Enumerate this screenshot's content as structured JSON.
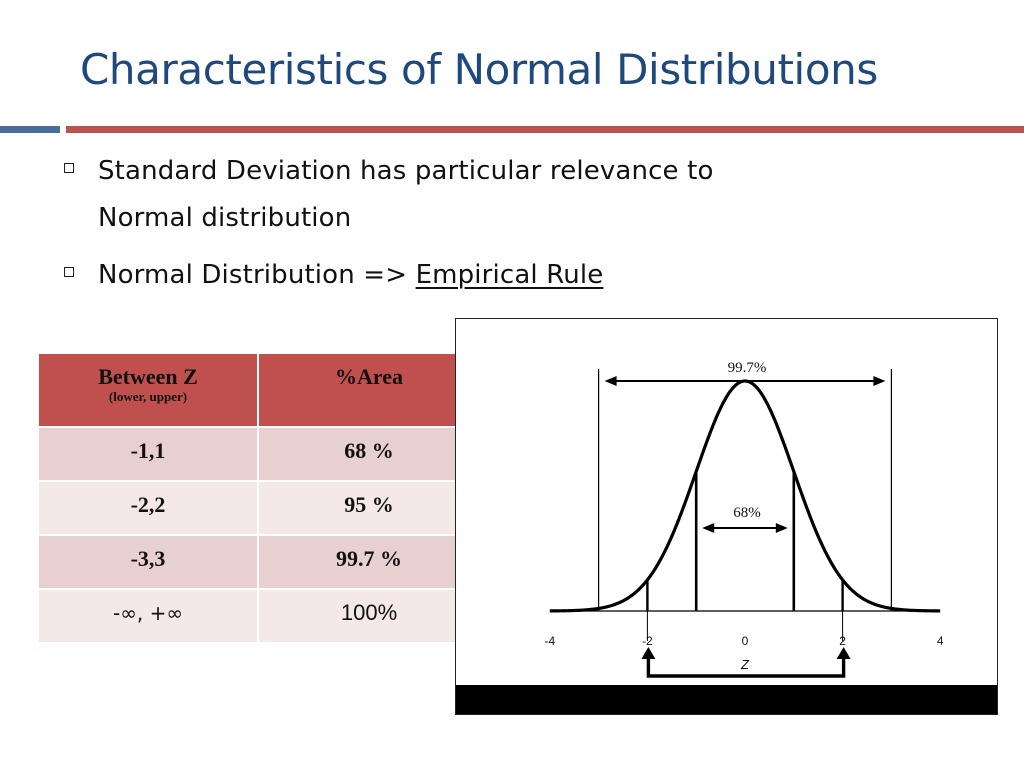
{
  "title": "Characteristics of Normal Distributions",
  "colors": {
    "title": "#1f497d",
    "accent_blue": "#4a6e9b",
    "accent_red": "#c0504d",
    "row_dark": "#e9d0d0",
    "row_light": "#f4e8e8"
  },
  "bullets": [
    {
      "icon": "square-bullet-icon",
      "line1": "Standard Deviation has particular relevance to",
      "line2": "Normal distribution"
    },
    {
      "icon": "square-bullet-icon",
      "text": "Normal Distribution =>",
      "link": "Empirical Rule"
    }
  ],
  "table": {
    "headers": [
      {
        "main": "Between Z",
        "sub": "(lower, upper)"
      },
      {
        "main": "%Area",
        "sub": ""
      }
    ],
    "rows": [
      {
        "range": "-1,1",
        "area": "68 %"
      },
      {
        "range": "-2,2",
        "area": "95 %"
      },
      {
        "range": "-3,3",
        "area": "99.7 %"
      },
      {
        "range": "-∞, +∞",
        "area": "100%"
      }
    ]
  },
  "chart_data": {
    "type": "line",
    "series": [
      {
        "function": "standard normal density",
        "mean": 0,
        "sd": 1
      }
    ],
    "x_axis": {
      "label": "Z",
      "ticks": [
        "-4",
        "-2",
        "0",
        "2",
        "4"
      ],
      "range": [
        -4,
        4
      ]
    },
    "vertical_lines_z": [
      -3,
      -2,
      -1,
      1,
      2,
      3
    ],
    "annotations": [
      {
        "text": "99.7%",
        "from_z": -3,
        "to_z": 3
      },
      {
        "text": "68%",
        "from_z": -1,
        "to_z": 1
      }
    ],
    "bracket_z": [
      -2,
      2
    ]
  }
}
